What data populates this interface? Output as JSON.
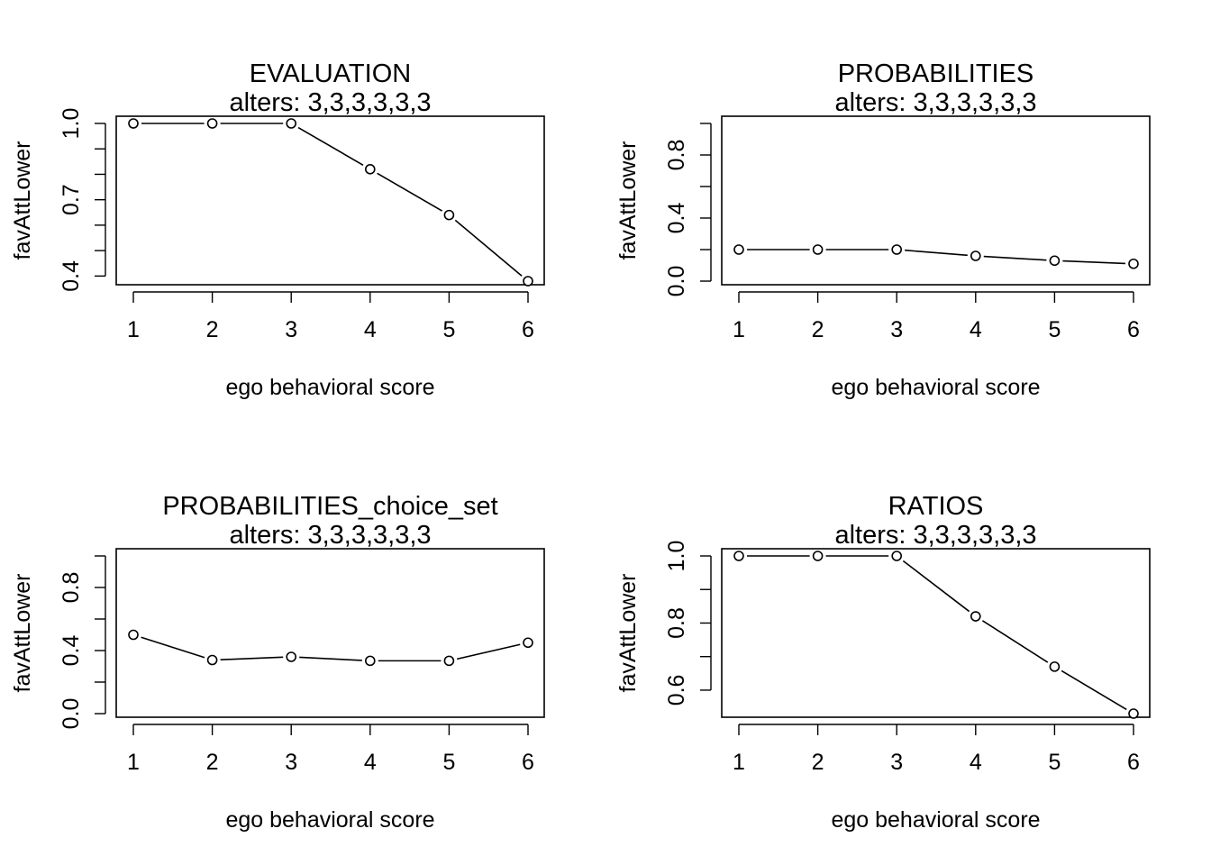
{
  "chart_data": [
    {
      "type": "line",
      "title": "EVALUATION",
      "subtitle": "alters: 3,3,3,3,3,3",
      "xlabel": "ego behavioral score",
      "ylabel": "favAttLower",
      "x": [
        1,
        2,
        3,
        4,
        5,
        6
      ],
      "values": [
        1.0,
        1.0,
        1.0,
        0.82,
        0.64,
        0.38
      ],
      "xlim": [
        1,
        6
      ],
      "ylim": [
        0.38,
        1.0
      ],
      "xticks": [
        1,
        2,
        3,
        4,
        5,
        6
      ],
      "yticks": [
        0.4,
        0.7,
        1.0
      ],
      "yminor": [
        0.5,
        0.6,
        0.8,
        0.9
      ],
      "ytick_labels": [
        "0.4",
        "0.7",
        "1.0"
      ],
      "grid": false
    },
    {
      "type": "line",
      "title": "PROBABILITIES",
      "subtitle": "alters: 3,3,3,3,3,3",
      "xlabel": "ego behavioral score",
      "ylabel": "favAttLower",
      "x": [
        1,
        2,
        3,
        4,
        5,
        6
      ],
      "values": [
        0.2,
        0.2,
        0.2,
        0.16,
        0.13,
        0.11
      ],
      "xlim": [
        1,
        6
      ],
      "ylim": [
        0.0,
        1.0
      ],
      "xticks": [
        1,
        2,
        3,
        4,
        5,
        6
      ],
      "yticks": [
        0.0,
        0.4,
        0.8
      ],
      "yminor": [
        0.2,
        0.6,
        1.0
      ],
      "ytick_labels": [
        "0.0",
        "0.4",
        "0.8"
      ],
      "grid": false
    },
    {
      "type": "line",
      "title": "PROBABILITIES_choice_set",
      "subtitle": "alters: 3,3,3,3,3,3",
      "xlabel": "ego behavioral score",
      "ylabel": "favAttLower",
      "x": [
        1,
        2,
        3,
        4,
        5,
        6
      ],
      "values": [
        0.5,
        0.34,
        0.36,
        0.335,
        0.335,
        0.45
      ],
      "xlim": [
        1,
        6
      ],
      "ylim": [
        0.0,
        1.0
      ],
      "xticks": [
        1,
        2,
        3,
        4,
        5,
        6
      ],
      "yticks": [
        0.0,
        0.4,
        0.8
      ],
      "yminor": [
        0.2,
        0.6,
        1.0
      ],
      "ytick_labels": [
        "0.0",
        "0.4",
        "0.8"
      ],
      "grid": false
    },
    {
      "type": "line",
      "title": "RATIOS",
      "subtitle": "alters: 3,3,3,3,3,3",
      "xlabel": "ego behavioral score",
      "ylabel": "favAttLower",
      "x": [
        1,
        2,
        3,
        4,
        5,
        6
      ],
      "values": [
        1.0,
        1.0,
        1.0,
        0.82,
        0.67,
        0.53
      ],
      "xlim": [
        1,
        6
      ],
      "ylim": [
        0.53,
        1.0
      ],
      "xticks": [
        1,
        2,
        3,
        4,
        5,
        6
      ],
      "yticks": [
        0.6,
        0.8,
        1.0
      ],
      "yminor": [
        0.7,
        0.9
      ],
      "ytick_labels": [
        "0.6",
        "0.8",
        "1.0"
      ],
      "grid": false
    }
  ]
}
